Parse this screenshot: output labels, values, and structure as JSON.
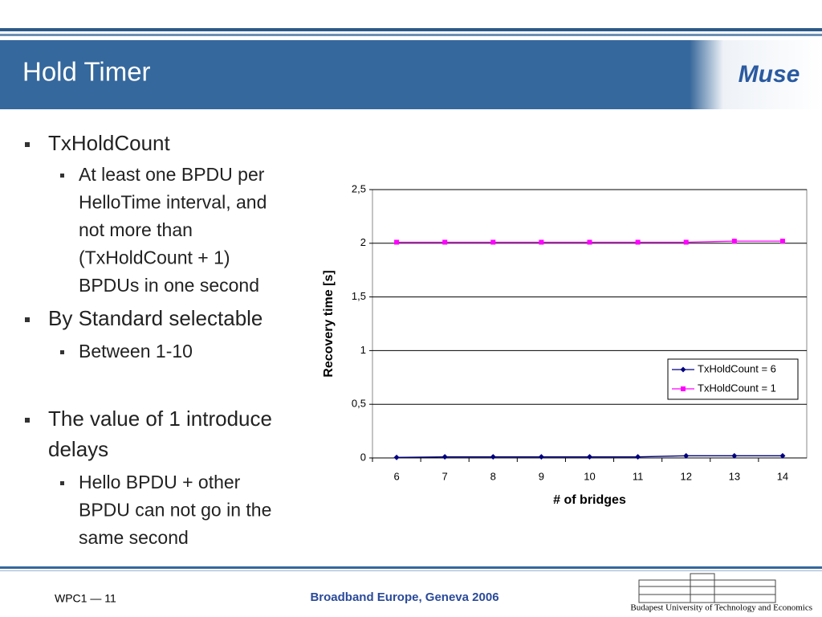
{
  "header": {
    "title": "Hold Timer",
    "logo": "Muse"
  },
  "bullets": [
    {
      "level": 1,
      "lines": [
        "TxHoldCount"
      ]
    },
    {
      "level": 2,
      "lines": [
        "At least one BPDU per",
        "HelloTime  interval, and",
        "not more than",
        "(TxHoldCount + 1)",
        "BPDUs in one second"
      ]
    },
    {
      "level": 1,
      "lines": [
        "By Standard selectable"
      ]
    },
    {
      "level": 2,
      "lines": [
        "Between 1-10"
      ]
    },
    {
      "level": 1,
      "lines": [
        "The value of 1 introduce",
        "delays"
      ]
    },
    {
      "level": 2,
      "lines": [
        "Hello BPDU + other",
        "BPDU can not go in the",
        "same second"
      ]
    }
  ],
  "chart_data": {
    "type": "line",
    "x_label": "# of bridges",
    "y_label": "Recovery time [s]",
    "categories": [
      "6",
      "7",
      "8",
      "9",
      "10",
      "11",
      "12",
      "13",
      "14"
    ],
    "series": [
      {
        "name": "TxHoldCount = 6",
        "color": "#000080",
        "marker": "diamond",
        "values": [
          0.005,
          0.01,
          0.01,
          0.01,
          0.01,
          0.01,
          0.02,
          0.02,
          0.02
        ]
      },
      {
        "name": "TxHoldCount = 1",
        "color": "#ff00ff",
        "marker": "square",
        "values": [
          2.01,
          2.01,
          2.01,
          2.01,
          2.01,
          2.01,
          2.01,
          2.02,
          2.02
        ]
      }
    ],
    "ylim": [
      0,
      2.5
    ],
    "yticks": [
      0,
      {
        "value": 0.5,
        "label": "0,5"
      },
      1,
      {
        "value": 1.5,
        "label": "1,5"
      },
      2,
      {
        "value": 2.5,
        "label": "2,5"
      }
    ],
    "grid": true,
    "legend": "right"
  },
  "footer": {
    "left": "WPC1 — 11",
    "center": "Broadband Europe, Geneva 2006",
    "right": "Budapest University of Technology and Economics"
  }
}
